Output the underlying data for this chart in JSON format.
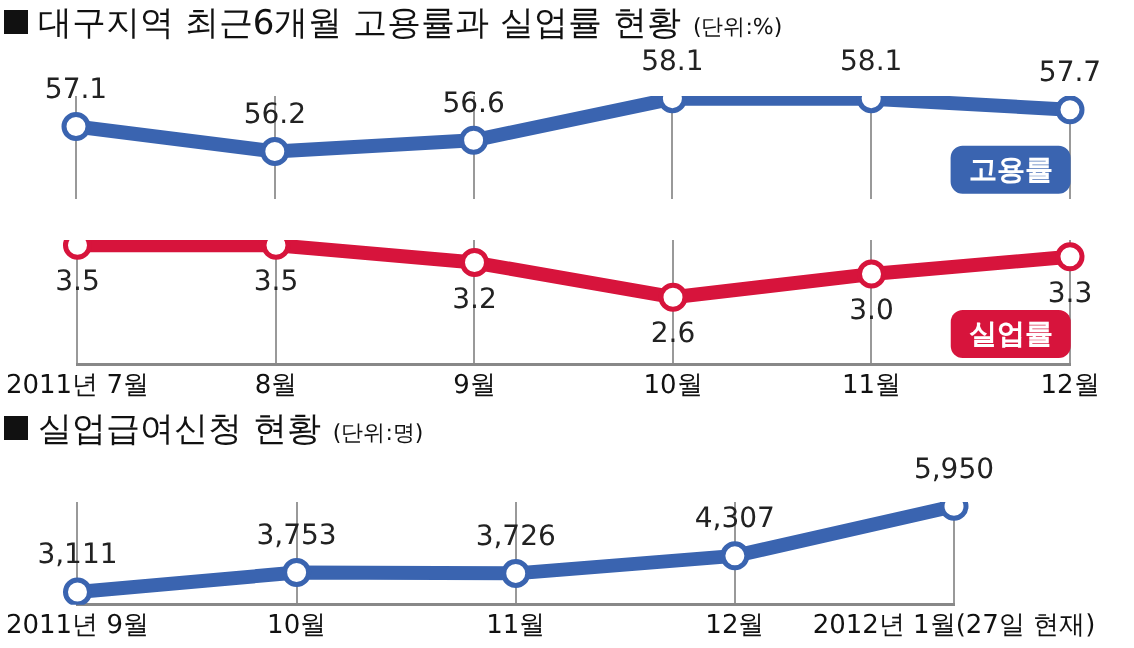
{
  "chart_data": [
    {
      "type": "line",
      "title": "대구지역 최근6개월 고용률과 실업률 현황",
      "subtitle": "(단위:%)",
      "categories": [
        null,
        null,
        null,
        null,
        null,
        null
      ],
      "series": [
        {
          "name": "고용률",
          "color": "#3a64b0",
          "values": [
            57.1,
            56.2,
            56.6,
            58.1,
            58.1,
            57.7
          ]
        }
      ],
      "data_labels": true,
      "grid": "x",
      "marker": "circle",
      "line_style": "solid",
      "tick_labels": false
    },
    {
      "type": "line",
      "categories": [
        "2011년 7월",
        "8월",
        "9월",
        "10월",
        "11월",
        "12월"
      ],
      "series": [
        {
          "name": "실업률",
          "color": "#d7143c",
          "values": [
            3.5,
            3.5,
            3.2,
            2.6,
            3.0,
            3.3
          ],
          "value_labels": [
            "3.5",
            "3.5",
            "3.2",
            "2.6",
            "3.0",
            "3.3"
          ]
        }
      ],
      "grid": "x",
      "marker": "circle",
      "line_style": "solid",
      "tick_labels": "x"
    },
    {
      "type": "line",
      "title": "실업급여신청 현황",
      "subtitle": "(단위:명)",
      "categories": [
        "2011년 9월",
        "10월",
        "11월",
        "12월",
        "2012년 1월(27일 현재)"
      ],
      "series": [
        {
          "color": "#3a64b0",
          "values": [
            3111,
            3753,
            3726,
            4307,
            5950
          ],
          "value_labels": [
            "3,111",
            "3,753",
            "3,726",
            "4,307",
            "5,950"
          ]
        }
      ],
      "grid": "x",
      "marker": "circle",
      "line_style": "solid",
      "tick_labels": "x"
    }
  ]
}
